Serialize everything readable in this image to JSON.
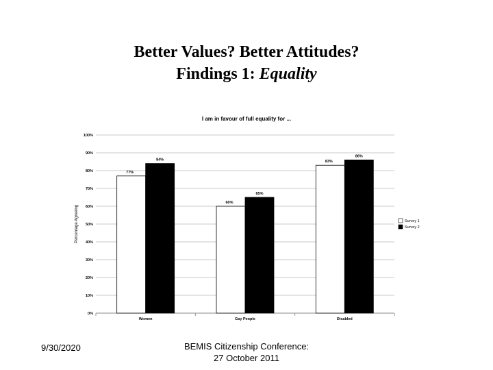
{
  "slide": {
    "title_line1": "Better Values? Better Attitudes?",
    "title_line2_prefix": "Findings 1: ",
    "title_line2_italic": "Equality"
  },
  "footer": {
    "date": "9/30/2020",
    "conference_line1": "BEMIS Citizenship Conference:",
    "conference_line2": "27 October 2011"
  },
  "chart_data": {
    "type": "bar",
    "title": "I am in favour of full equality for ...",
    "xlabel": "",
    "ylabel": "Percentage Agreeing",
    "categories": [
      "Women",
      "Gay People",
      "Disabled"
    ],
    "series": [
      {
        "name": "Survey 1",
        "values": [
          77,
          60,
          83
        ],
        "labels": [
          "77%",
          "60%",
          "83%"
        ],
        "color": "#ffffff"
      },
      {
        "name": "Survey 2",
        "values": [
          84,
          65,
          86
        ],
        "labels": [
          "84%",
          "65%",
          "86%"
        ],
        "color": "#000000"
      }
    ],
    "ylim": [
      0,
      100
    ],
    "yticks": [
      0,
      10,
      20,
      30,
      40,
      50,
      60,
      70,
      80,
      90,
      100
    ],
    "ytick_labels": [
      "0%",
      "10%",
      "20%",
      "30%",
      "40%",
      "50%",
      "60%",
      "70%",
      "80%",
      "90%",
      "100%"
    ],
    "grid": true,
    "legend": "right"
  }
}
